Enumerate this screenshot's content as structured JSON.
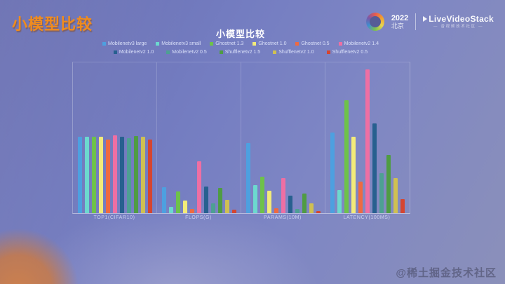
{
  "slide": {
    "title": "小模型比较",
    "title_color": "#f08c1e",
    "watermark": "@稀土掘金技术社区"
  },
  "header": {
    "badge_year": "2022",
    "badge_city": "北京",
    "brand": "LiveVideoStack",
    "tagline": "— 音视频技术社区 —"
  },
  "chart_data": {
    "type": "bar",
    "title": "小模型比较",
    "categories": [
      "TOP1(CIFAR10)",
      "FLOPS(G)",
      "PARAMS(10M)",
      "LATENCY(100MS)"
    ],
    "series": [
      {
        "name": "Mobilenetv3 large",
        "color": "#4da0e0",
        "values": [
          0.96,
          0.33,
          0.88,
          1.02
        ]
      },
      {
        "name": "Mobilenetv3 small",
        "color": "#6cd9cf",
        "values": [
          0.96,
          0.08,
          0.35,
          0.29
        ]
      },
      {
        "name": "Ghostnet 1.3",
        "color": "#6ec24a",
        "values": [
          0.96,
          0.27,
          0.46,
          1.42
        ]
      },
      {
        "name": "Ghostnet 1.0",
        "color": "#f3eb79",
        "values": [
          0.96,
          0.16,
          0.28,
          0.96
        ]
      },
      {
        "name": "Ghostnet 0.5",
        "color": "#ee6a41",
        "values": [
          0.93,
          0.05,
          0.06,
          0.4
        ]
      },
      {
        "name": "Mobilenetv2 1.4",
        "color": "#ee6fa3",
        "values": [
          0.98,
          0.65,
          0.44,
          1.81
        ]
      },
      {
        "name": "Mobilenetv2 1.0",
        "color": "#27608f",
        "values": [
          0.96,
          0.34,
          0.22,
          1.13
        ]
      },
      {
        "name": "Mobilenetv2 0.5",
        "color": "#4da093",
        "values": [
          0.95,
          0.12,
          0.05,
          0.5
        ]
      },
      {
        "name": "Shufflenetv2 1.5",
        "color": "#4f9c43",
        "values": [
          0.97,
          0.32,
          0.25,
          0.73
        ]
      },
      {
        "name": "Shufflenetv2 1.0",
        "color": "#cfc052",
        "values": [
          0.96,
          0.17,
          0.12,
          0.44
        ]
      },
      {
        "name": "Shufflenetv2 0.5",
        "color": "#d54530",
        "values": [
          0.93,
          0.04,
          0.03,
          0.18
        ]
      }
    ],
    "ylim": [
      0,
      1.9
    ],
    "legend_position": "top",
    "legend_rows": [
      6,
      5
    ],
    "grid": "category-separators",
    "xlabel": "",
    "ylabel": ""
  }
}
